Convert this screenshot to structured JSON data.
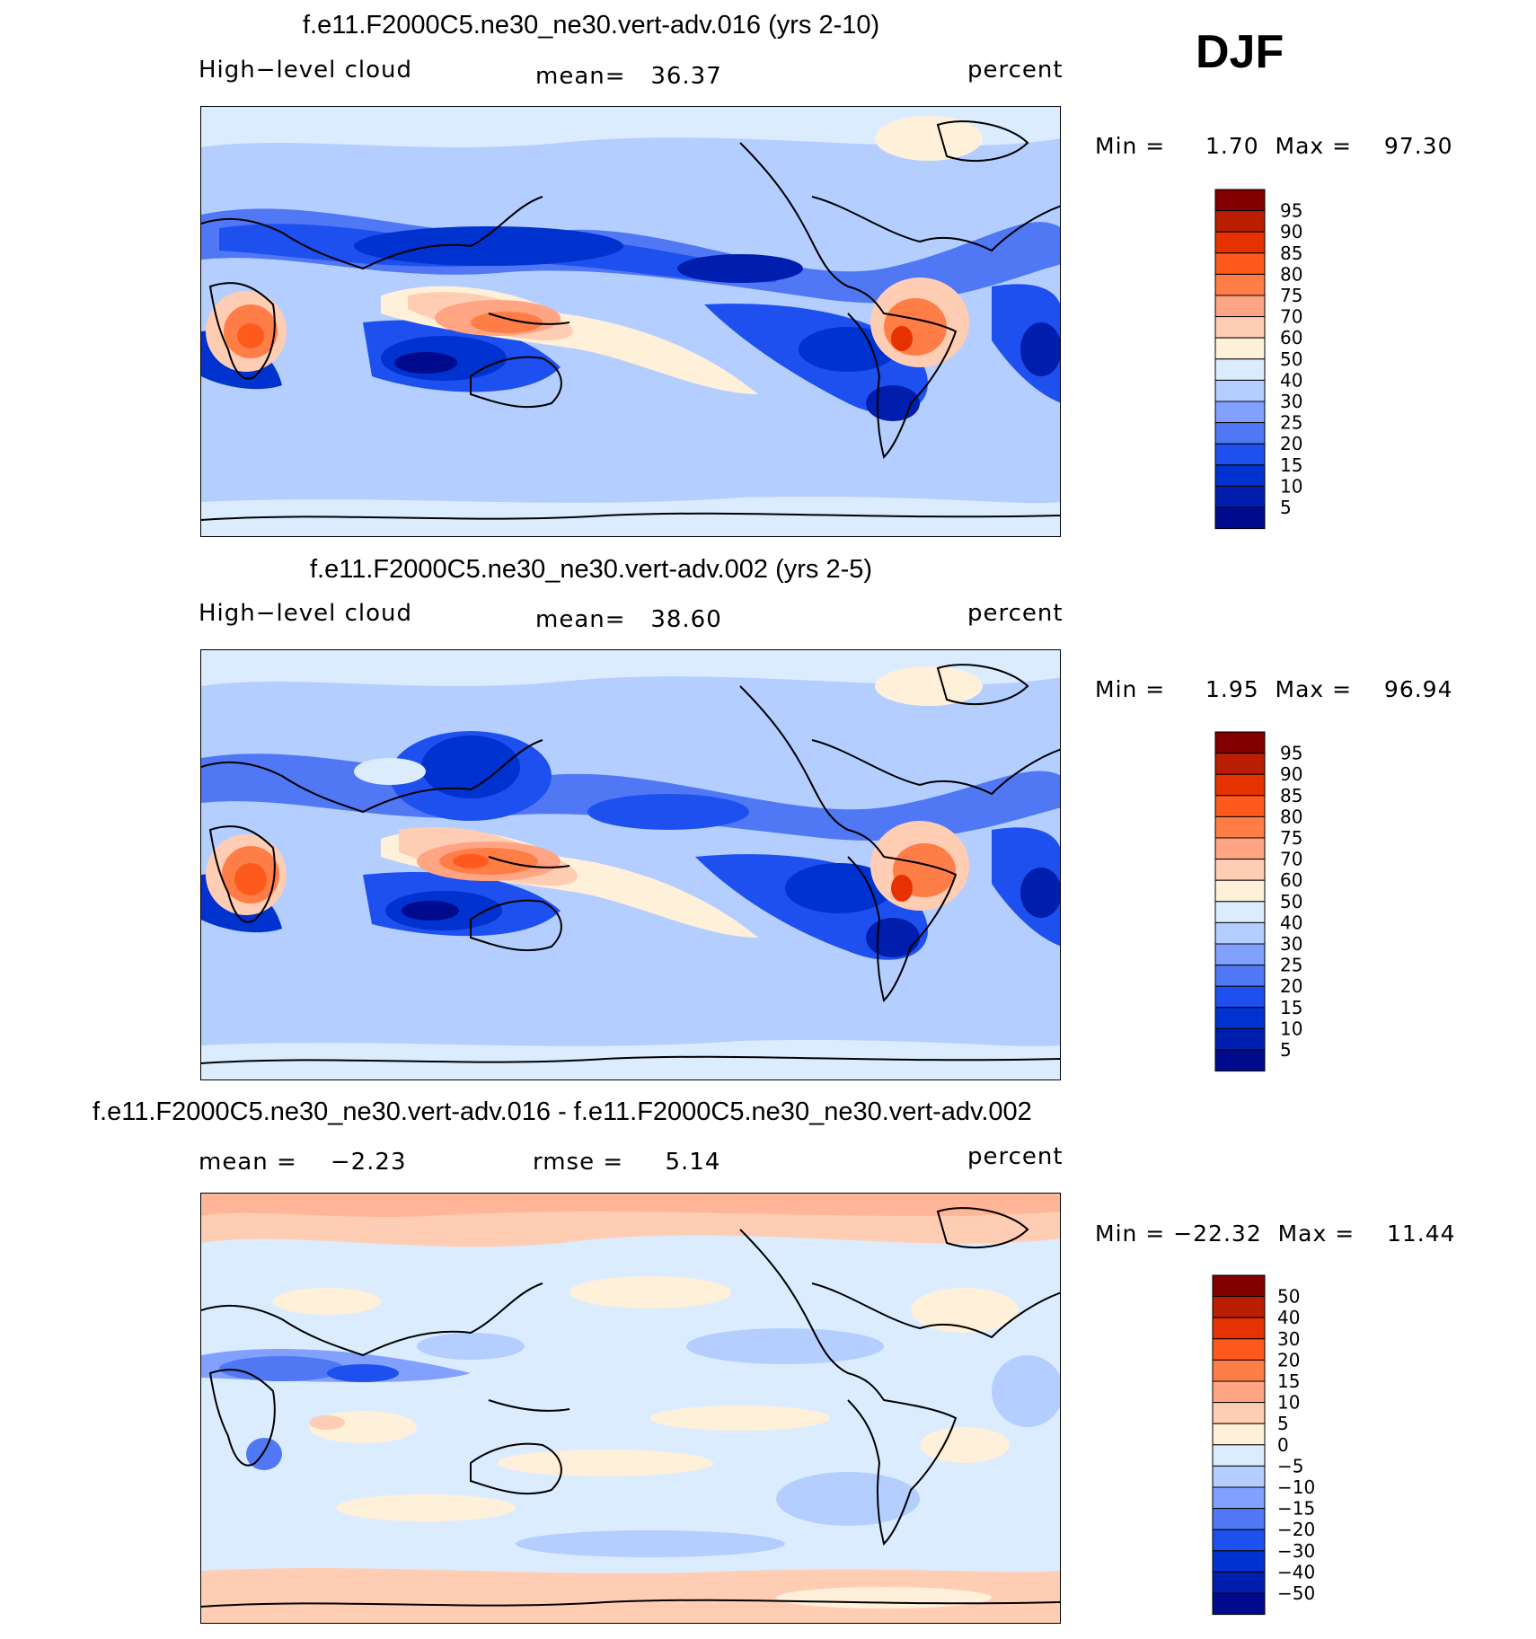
{
  "season": "DJF",
  "colors": {
    "abs_scale": [
      "#000a8c",
      "#001eae",
      "#0032d0",
      "#1e50f0",
      "#5078f5",
      "#82a0ff",
      "#b4ceff",
      "#dcecff",
      "#fff0d9",
      "#ffcdb4",
      "#ffa584",
      "#ff7d46",
      "#ff5a1e",
      "#e63200",
      "#b91e00",
      "#820000"
    ],
    "diff_scale": [
      "#000a8c",
      "#001eae",
      "#0032d0",
      "#1e50f0",
      "#5078f5",
      "#82a0ff",
      "#b4ceff",
      "#dcecff",
      "#fff0d9",
      "#ffcdb4",
      "#ffa584",
      "#ff7d46",
      "#ff5a1e",
      "#e63200",
      "#b91e00",
      "#820000"
    ]
  },
  "panels": [
    {
      "title": "f.e11.F2000C5.ne30_ne30.vert-adv.016 (yrs 2-10)",
      "variable": "High−level cloud",
      "mean_text": "mean=   36.37",
      "units": "percent",
      "minmax_text": "Min =     1.70  Max =    97.30"
    },
    {
      "title": "f.e11.F2000C5.ne30_ne30.vert-adv.002 (yrs 2-5)",
      "variable": "High−level cloud",
      "mean_text": "mean=   38.60",
      "units": "percent",
      "minmax_text": "Min =     1.95  Max =    96.94"
    },
    {
      "title": "f.e11.F2000C5.ne30_ne30.vert-adv.016 - f.e11.F2000C5.ne30_ne30.vert-adv.002",
      "mean_text": "mean =    −2.23",
      "rmse_text": "rmse =     5.14",
      "units": "percent",
      "minmax_text": "Min = −22.32  Max =    11.44"
    }
  ],
  "chart_data": [
    {
      "type": "heatmap",
      "title": "f.e11.F2000C5.ne30_ne30.vert-adv.016 (yrs 2-10)",
      "field": "High-level cloud",
      "units": "percent",
      "mean": 36.37,
      "min": 1.7,
      "max": 97.3,
      "levels": [
        "95",
        "90",
        "85",
        "80",
        "75",
        "70",
        "60",
        "50",
        "40",
        "30",
        "25",
        "20",
        "15",
        "10",
        "5"
      ]
    },
    {
      "type": "heatmap",
      "title": "f.e11.F2000C5.ne30_ne30.vert-adv.002 (yrs 2-5)",
      "field": "High-level cloud",
      "units": "percent",
      "mean": 38.6,
      "min": 1.95,
      "max": 96.94,
      "levels": [
        "95",
        "90",
        "85",
        "80",
        "75",
        "70",
        "60",
        "50",
        "40",
        "30",
        "25",
        "20",
        "15",
        "10",
        "5"
      ]
    },
    {
      "type": "heatmap",
      "title": "f.e11.F2000C5.ne30_ne30.vert-adv.016 - f.e11.F2000C5.ne30_ne30.vert-adv.002",
      "units": "percent",
      "mean": -2.23,
      "rmse": 5.14,
      "min": -22.32,
      "max": 11.44,
      "levels": [
        "50",
        "40",
        "30",
        "20",
        "15",
        "10",
        "5",
        "0",
        "−5",
        "−10",
        "−15",
        "−20",
        "−30",
        "−40",
        "−50"
      ]
    }
  ]
}
